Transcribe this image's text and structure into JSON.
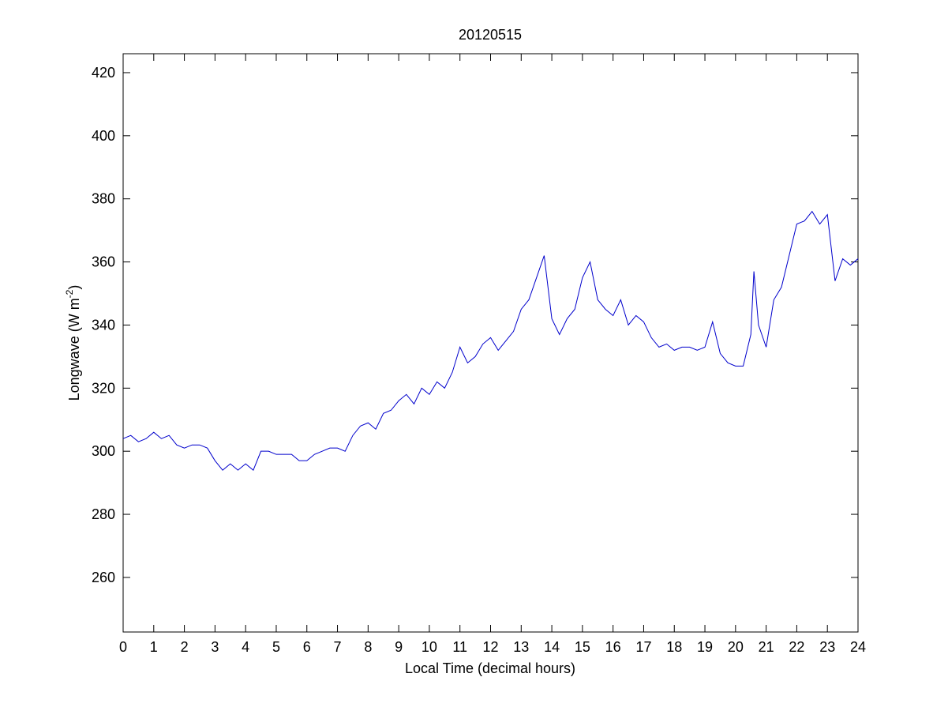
{
  "chart_data": {
    "type": "line",
    "title": "20120515",
    "xlabel": "Local Time (decimal hours)",
    "ylabel": [
      "Longwave (W m",
      "-2",
      ")"
    ],
    "x": [
      0,
      0.25,
      0.5,
      0.75,
      1,
      1.25,
      1.5,
      1.75,
      2,
      2.25,
      2.5,
      2.75,
      3,
      3.25,
      3.5,
      3.75,
      4,
      4.25,
      4.5,
      4.75,
      5,
      5.25,
      5.5,
      5.75,
      6,
      6.25,
      6.5,
      6.75,
      7,
      7.25,
      7.5,
      7.75,
      8,
      8.25,
      8.5,
      8.75,
      9,
      9.25,
      9.5,
      9.75,
      10,
      10.25,
      10.5,
      10.75,
      11,
      11.25,
      11.5,
      11.75,
      12,
      12.25,
      12.5,
      12.75,
      13,
      13.25,
      13.5,
      13.75,
      14,
      14.25,
      14.5,
      14.75,
      15,
      15.25,
      15.5,
      15.75,
      16,
      16.25,
      16.5,
      16.75,
      17,
      17.25,
      17.5,
      17.75,
      18,
      18.25,
      18.5,
      18.75,
      19,
      19.25,
      19.5,
      19.75,
      20,
      20.25,
      20.5,
      20.6,
      20.75,
      21,
      21.25,
      21.5,
      21.75,
      22,
      22.25,
      22.5,
      22.75,
      23,
      23.25,
      23.5,
      23.75,
      24
    ],
    "series": [
      {
        "name": "Longwave",
        "color": "#0000cc",
        "values": [
          304,
          305,
          303,
          304,
          306,
          304,
          305,
          302,
          301,
          302,
          302,
          301,
          297,
          294,
          296,
          294,
          296,
          294,
          300,
          300,
          299,
          299,
          299,
          297,
          297,
          299,
          300,
          301,
          301,
          300,
          305,
          308,
          309,
          307,
          312,
          313,
          316,
          318,
          315,
          320,
          318,
          322,
          320,
          325,
          333,
          328,
          330,
          334,
          336,
          332,
          335,
          338,
          345,
          348,
          355,
          362,
          342,
          337,
          342,
          345,
          355,
          360,
          348,
          345,
          343,
          348,
          340,
          343,
          341,
          336,
          333,
          334,
          332,
          333,
          333,
          332,
          333,
          341,
          331,
          328,
          327,
          327,
          337,
          357,
          340,
          333,
          348,
          352,
          362,
          372,
          373,
          376,
          372,
          375,
          354,
          361,
          359,
          361
        ]
      }
    ],
    "xlim": [
      0,
      24
    ],
    "xticks": [
      0,
      1,
      2,
      3,
      4,
      5,
      6,
      7,
      8,
      9,
      10,
      11,
      12,
      13,
      14,
      15,
      16,
      17,
      18,
      19,
      20,
      21,
      22,
      23,
      24
    ],
    "ylim": [
      242.7,
      426
    ],
    "yticks": [
      260,
      280,
      300,
      320,
      340,
      360,
      380,
      400,
      420
    ]
  }
}
